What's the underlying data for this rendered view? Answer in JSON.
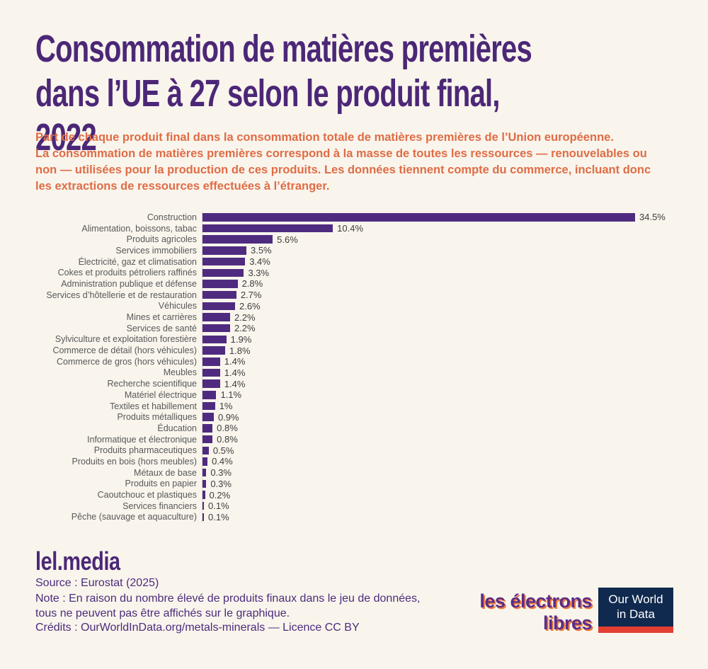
{
  "header": {
    "title": "Consommation de matières premières\ndans l’UE à 27 selon le produit final, 2022",
    "subtitle": "Part de chaque produit final dans la consommation totale de matières premières de l’Union européenne.\nLa consommation de matières premières correspond à la masse de toutes les ressources — renouvelables ou\nnon — utilisées pour la production de ces produits. Les données tiennent compte du commerce, incluant donc\nles extractions de ressources effectuées à l’étranger."
  },
  "chart_data": {
    "type": "bar",
    "orientation": "horizontal",
    "title": "Consommation de matières premières dans l’UE à 27 selon le produit final, 2022",
    "unit": "%",
    "xlim": [
      0,
      36
    ],
    "grid": false,
    "legend": false,
    "bar_color": "#4f2b80",
    "categories": [
      "Construction",
      "Alimentation, boissons, tabac",
      "Produits agricoles",
      "Services immobiliers",
      "Électricité, gaz et climatisation",
      "Cokes et produits pétroliers raffinés",
      "Administration publique et défense",
      "Services d’hôtellerie et de restauration",
      "Véhicules",
      "Mines et carrières",
      "Services de santé",
      "Sylviculture et exploitation forestière",
      "Commerce de détail (hors véhicules)",
      "Commerce de gros (hors véhicules)",
      "Meubles",
      "Recherche scientifique",
      "Matériel électrique",
      "Textiles et habillement",
      "Produits métalliques",
      "Éducation",
      "Informatique et électronique",
      "Produits pharmaceutiques",
      "Produits en bois (hors meubles)",
      "Métaux de base",
      "Produits en papier",
      "Caoutchouc et plastiques",
      "Services financiers",
      "Pêche (sauvage et aquaculture)"
    ],
    "values": [
      34.5,
      10.4,
      5.6,
      3.5,
      3.4,
      3.3,
      2.8,
      2.7,
      2.6,
      2.2,
      2.2,
      1.9,
      1.8,
      1.4,
      1.4,
      1.4,
      1.1,
      1,
      0.9,
      0.8,
      0.8,
      0.5,
      0.4,
      0.3,
      0.3,
      0.2,
      0.1,
      0.1
    ],
    "value_labels": [
      "34.5%",
      "10.4%",
      "5.6%",
      "3.5%",
      "3.4%",
      "3.3%",
      "2.8%",
      "2.7%",
      "2.6%",
      "2.2%",
      "2.2%",
      "1.9%",
      "1.8%",
      "1.4%",
      "1.4%",
      "1.4%",
      "1.1%",
      "1%",
      "0.9%",
      "0.8%",
      "0.8%",
      "0.5%",
      "0.4%",
      "0.3%",
      "0.3%",
      "0.2%",
      "0.1%",
      "0.1%"
    ]
  },
  "footer": {
    "brand": "lel.media",
    "source": "Source : Eurostat (2025)",
    "note": "Note : En raison du nombre élevé de produits finaux dans le jeu de données,\ntous ne peuvent pas être affichés sur le graphique.",
    "credits": "Crédits : OurWorldInData.org/metals-minerals — Licence CC BY"
  },
  "logos": {
    "electrons_libres": {
      "line1": "les électrons",
      "line2": "libres"
    },
    "owid": {
      "line1": "Our World",
      "line2": "in Data",
      "bg": "#10294e",
      "accent": "#e23e32"
    }
  },
  "colors": {
    "background": "#f9f5ed",
    "title": "#4c2777",
    "subtitle": "#e06c45",
    "bar": "#4f2b80",
    "category_label": "#585858",
    "value_label": "#3d3d3d",
    "axis_line": "#ddd8cb"
  }
}
